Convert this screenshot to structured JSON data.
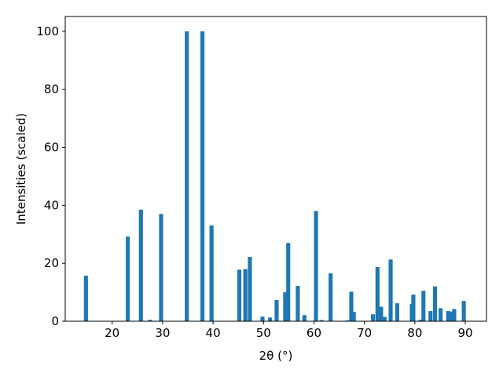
{
  "chart_data": {
    "type": "bar",
    "xlabel": "2θ (°)",
    "ylabel": "Intensities (scaled)",
    "color": "#1f77b4",
    "x": [
      14.8,
      23.1,
      25.7,
      27.5,
      29.7,
      34.8,
      37.9,
      39.7,
      45.2,
      46.4,
      47.3,
      49.8,
      51.3,
      52.6,
      54.3,
      54.9,
      56.8,
      58.1,
      60.4,
      61.5,
      63.3,
      66.7,
      67.4,
      67.9,
      71.7,
      72.6,
      73.3,
      74.0,
      75.2,
      76.5,
      79.4,
      79.7,
      81.1,
      81.7,
      83.1,
      84.0,
      85.1,
      86.6,
      87.1,
      87.8,
      89.7
    ],
    "values": [
      15.7,
      29.2,
      38.5,
      0.5,
      37,
      100,
      100,
      33,
      17.8,
      18,
      22.2,
      1.6,
      1.3,
      7.3,
      10,
      27,
      12.2,
      2.1,
      38,
      0.4,
      16.5,
      0.3,
      10.2,
      3.2,
      2.4,
      18.7,
      5,
      1.5,
      21.3,
      6.2,
      6,
      9.2,
      0.5,
      10.5,
      3.5,
      12,
      4.5,
      3.5,
      3.3,
      4.2,
      7
    ],
    "xlim": [
      10.7,
      94.2
    ],
    "ylim": [
      0,
      105.1
    ],
    "xticks": [
      20,
      30,
      40,
      50,
      60,
      70,
      80,
      90
    ],
    "yticks": [
      0,
      20,
      40,
      60,
      80,
      100
    ]
  }
}
